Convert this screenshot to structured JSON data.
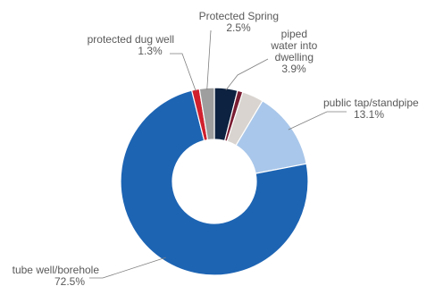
{
  "chart_data": {
    "type": "pie",
    "variant": "donut",
    "title": "",
    "slices": [
      {
        "label": "piped water into dwelling",
        "value": 3.9,
        "value_label": "3.9%",
        "color": "#0d2240"
      },
      {
        "label": "",
        "value": 0.9,
        "value_label": "",
        "color": "#7a1e33"
      },
      {
        "label": "",
        "value": 3.6,
        "value_label": "",
        "color": "#d9d4cf"
      },
      {
        "label": "public tap/standpipe",
        "value": 13.1,
        "value_label": "13.1%",
        "color": "#a9c7ea"
      },
      {
        "label": "tube well/borehole",
        "value": 72.5,
        "value_label": "72.5%",
        "color": "#1d64b3"
      },
      {
        "label": "protected dug well",
        "value": 1.3,
        "value_label": "1.3%",
        "color": "#d0202e"
      },
      {
        "label": "Protected Spring",
        "value": 2.5,
        "value_label": "2.5%",
        "color": "#9e9e9e"
      }
    ],
    "start_angle_deg": 0,
    "direction": "clockwise",
    "legend": "none",
    "labels": [
      {
        "lines": [
          "Protected Spring",
          "2.5%"
        ],
        "slice": 6
      },
      {
        "lines": [
          "piped",
          "water into",
          "dwelling",
          "3.9%"
        ],
        "slice": 0
      },
      {
        "lines": [
          "protected dug well",
          "1.3%"
        ],
        "slice": 5
      },
      {
        "lines": [
          "public tap/standpipe",
          "13.1%"
        ],
        "slice": 3
      },
      {
        "lines": [
          "tube well/borehole",
          "72.5%"
        ],
        "slice": 4
      }
    ]
  }
}
